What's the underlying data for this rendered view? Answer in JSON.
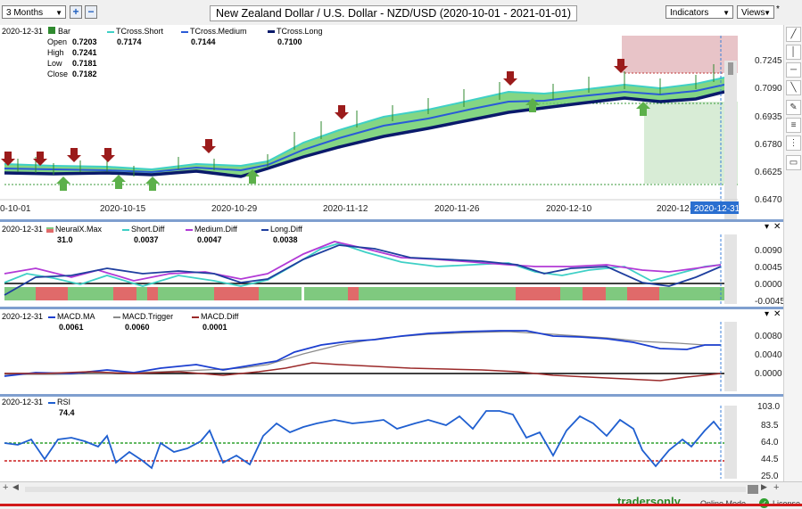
{
  "toolbar": {
    "period": "3 Months",
    "add": "+",
    "remove": "−",
    "title": "New Zealand Dollar / U.S. Dollar - NZD/USD (2020-10-01 - 2021-01-01)",
    "indicators": "Indicators",
    "views": "Views",
    "marker": "*"
  },
  "price_pane": {
    "date": "2020-12-31",
    "bar_label": "Bar",
    "open_label": "Open",
    "open": "0.7203",
    "high_label": "High",
    "high": "0.7241",
    "low_label": "Low",
    "low": "0.7181",
    "close_label": "Close",
    "close": "0.7182",
    "short_label": "TCross.Short",
    "short_val": "0.7174",
    "medium_label": "TCross.Medium",
    "medium_val": "0.7144",
    "long_label": "TCross.Long",
    "long_val": "0.7100",
    "yticks": [
      "0.7245",
      "0.7090",
      "0.6935",
      "0.6780",
      "0.6625",
      "0.6470"
    ],
    "xticks": [
      "0-10-01",
      "2020-10-15",
      "2020-10-29",
      "2020-11-12",
      "2020-11-26",
      "2020-12-10",
      "2020-12-"
    ],
    "cursor_date": "2020-12-31"
  },
  "diff_pane": {
    "date": "2020-12-31",
    "neural_label": "NeuralX.Max",
    "neural_val": "31.0",
    "short_label": "Short.Diff",
    "short_val": "0.0037",
    "medium_label": "Medium.Diff",
    "medium_val": "0.0047",
    "long_label": "Long.Diff",
    "long_val": "0.0038",
    "yticks": [
      "0.0090",
      "0.0045",
      "0.0000",
      "-0.0045"
    ]
  },
  "macd_pane": {
    "date": "2020-12-31",
    "ma_label": "MACD.MA",
    "ma_val": "0.0061",
    "trigger_label": "MACD.Trigger",
    "trigger_val": "0.0060",
    "diff_label": "MACD.Diff",
    "diff_val": "0.0001",
    "yticks": [
      "0.0080",
      "0.0040",
      "0.0000"
    ]
  },
  "rsi_pane": {
    "date": "2020-12-31",
    "rsi_label": "RSI",
    "rsi_val": "74.4",
    "yticks": [
      "103.0",
      "83.5",
      "64.0",
      "44.5",
      "25.0"
    ]
  },
  "pane_controls": {
    "down": "▾",
    "close": "✕"
  },
  "status": {
    "logo": "tradersonly",
    "mode": "Online Mode",
    "license": "License"
  },
  "colors": {
    "short": "#3fd0c6",
    "medium": "#2a5bd7",
    "long": "#0a1a6b",
    "band": "#6fcf6f",
    "up_arrow": "#5cb04a",
    "down_arrow": "#9b1b1b",
    "purple": "#b23ad6",
    "macd_ma": "#1c3fd0",
    "macd_trigger": "#8a8a8a",
    "macd_diff": "#9b2a2a",
    "rsi": "#1f5fd0",
    "rsi_upper": "#2ea02e",
    "rsi_lower": "#cc1f1f"
  }
}
